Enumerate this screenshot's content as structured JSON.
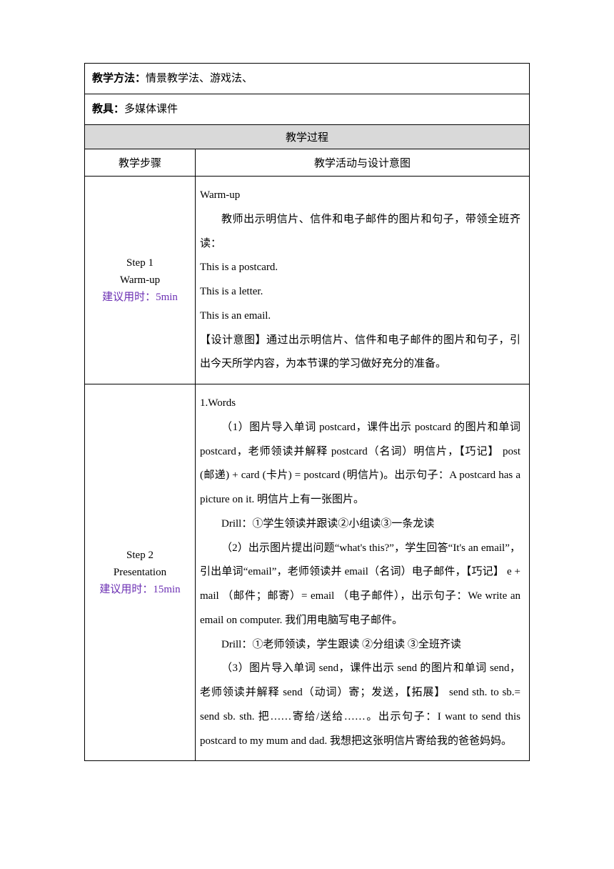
{
  "meta": {
    "method_label": "教学方法：",
    "method_value": "情景教学法、游戏法、",
    "tools_label": "教具：",
    "tools_value": "多媒体课件"
  },
  "process_header": "教学过程",
  "columns": {
    "step": "教学步骤",
    "activity": "教学活动与设计意图"
  },
  "steps": [
    {
      "name_en": "Step 1",
      "name_cn": "Warm-up",
      "time": "建议用时：5min",
      "lines": [
        {
          "text": "Warm-up",
          "indent": false,
          "latin": true
        },
        {
          "text": "教师出示明信片、信件和电子邮件的图片和句子，带领全班齐读：",
          "indent": true
        },
        {
          "text": "This is a postcard.",
          "indent": false,
          "latin": true
        },
        {
          "text": "This is a letter.",
          "indent": false,
          "latin": true
        },
        {
          "text": "This is an email.",
          "indent": false,
          "latin": true
        },
        {
          "text": "【设计意图】通过出示明信片、信件和电子邮件的图片和句子，引出今天所学内容，为本节课的学习做好充分的准备。",
          "indent": false
        }
      ]
    },
    {
      "name_en": "Step 2",
      "name_cn": "Presentation",
      "time": "建议用时：15min",
      "lines": [
        {
          "text": "1.Words",
          "indent": false,
          "latin": true
        },
        {
          "text": "（1）图片导入单词 postcard，课件出示 postcard 的图片和单词 postcard，老师领读并解释 postcard（名词）明信片，【巧记】 post (邮递) + card (卡片) = postcard (明信片)。出示句子：A postcard has a picture on it.  明信片上有一张图片。",
          "indent": true
        },
        {
          "text": "Drill：①学生领读并跟读②小组读③一条龙读",
          "indent": true
        },
        {
          "text": "（2）出示图片提出问题“what's this?”，学生回答“It's an email”，引出单词“email”，老师领读并 email（名词）电子邮件，【巧记】 e + mail （邮件；邮寄）= email （电子邮件），出示句子：We write an email on computer.  我们用电脑写电子邮件。",
          "indent": true
        },
        {
          "text": "Drill：①老师领读，学生跟读 ②分组读 ③全班齐读",
          "indent": true
        },
        {
          "text": "（3）图片导入单词 send，课件出示 send 的图片和单词 send，老师领读并解释 send（动词）寄；发送，【拓展】 send sth. to sb.= send sb. sth.  把……寄给/送给……。出示句子：I want to send this postcard to my mum and dad.  我想把这张明信片寄给我的爸爸妈妈。",
          "indent": true
        }
      ]
    }
  ]
}
